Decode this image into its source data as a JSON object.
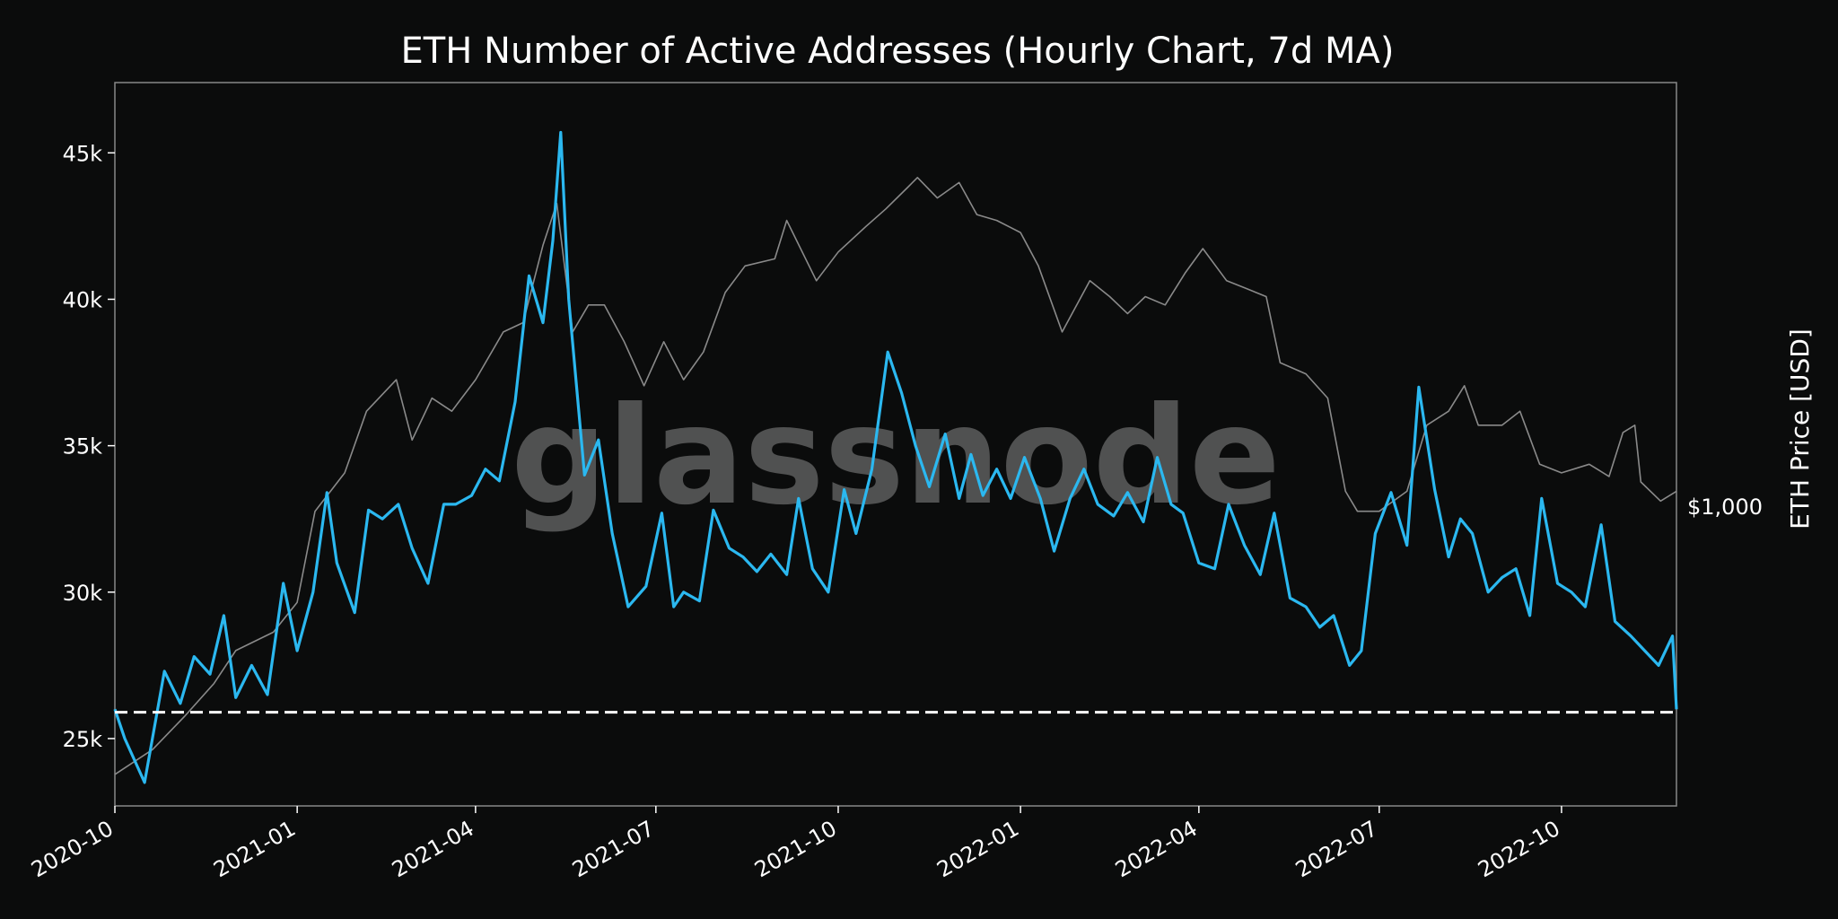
{
  "chart_data": {
    "type": "line",
    "title": "ETH Number of Active Addresses (Hourly Chart, 7d MA)",
    "watermark": "glassnode",
    "xlabel": "",
    "ylabel_right": "ETH Price [USD]",
    "right_tick_label": "$1,000",
    "x_ticks": [
      "2020-10",
      "2021-01",
      "2021-04",
      "2021-07",
      "2021-10",
      "2022-01",
      "2022-04",
      "2022-07",
      "2022-10"
    ],
    "y_ticks": [
      25000,
      30000,
      35000,
      40000,
      45000
    ],
    "y_tick_labels": [
      "25k",
      "30k",
      "35k",
      "40k",
      "45k"
    ],
    "ylim": [
      22700,
      47400
    ],
    "xlim": [
      "2020-10-01",
      "2022-11-28"
    ],
    "grid": false,
    "reference_line": {
      "value": 25900,
      "style": "dashed",
      "color": "#ffffff"
    },
    "colors": {
      "active_addresses": "#2bb8f0",
      "price": "#8a8a8a",
      "background": "#0b0c0c",
      "frame": "#888888"
    },
    "series": [
      {
        "key": "active_addresses",
        "axis": "left",
        "x": [
          "2020-10-01",
          "2020-10-06",
          "2020-10-16",
          "2020-10-26",
          "2020-11-03",
          "2020-11-10",
          "2020-11-18",
          "2020-11-25",
          "2020-12-01",
          "2020-12-09",
          "2020-12-17",
          "2020-12-25",
          "2021-01-01",
          "2021-01-09",
          "2021-01-16",
          "2021-01-21",
          "2021-01-30",
          "2021-02-06",
          "2021-02-13",
          "2021-02-21",
          "2021-02-28",
          "2021-03-08",
          "2021-03-16",
          "2021-03-22",
          "2021-03-30",
          "2021-04-06",
          "2021-04-13",
          "2021-04-21",
          "2021-04-28",
          "2021-05-05",
          "2021-05-10",
          "2021-05-14",
          "2021-05-18",
          "2021-05-26",
          "2021-06-02",
          "2021-06-09",
          "2021-06-17",
          "2021-06-26",
          "2021-07-04",
          "2021-07-10",
          "2021-07-15",
          "2021-07-23",
          "2021-07-30",
          "2021-08-07",
          "2021-08-14",
          "2021-08-21",
          "2021-08-28",
          "2021-09-05",
          "2021-09-11",
          "2021-09-18",
          "2021-09-26",
          "2021-10-04",
          "2021-10-10",
          "2021-10-18",
          "2021-10-26",
          "2021-11-02",
          "2021-11-09",
          "2021-11-16",
          "2021-11-24",
          "2021-12-01",
          "2021-12-07",
          "2021-12-13",
          "2021-12-20",
          "2021-12-27",
          "2022-01-03",
          "2022-01-11",
          "2022-01-18",
          "2022-01-26",
          "2022-02-02",
          "2022-02-09",
          "2022-02-17",
          "2022-02-24",
          "2022-03-04",
          "2022-03-11",
          "2022-03-18",
          "2022-03-24",
          "2022-04-01",
          "2022-04-09",
          "2022-04-16",
          "2022-04-24",
          "2022-05-02",
          "2022-05-09",
          "2022-05-17",
          "2022-05-25",
          "2022-06-01",
          "2022-06-08",
          "2022-06-16",
          "2022-06-22",
          "2022-06-29",
          "2022-07-07",
          "2022-07-15",
          "2022-07-21",
          "2022-07-29",
          "2022-08-05",
          "2022-08-11",
          "2022-08-17",
          "2022-08-25",
          "2022-09-01",
          "2022-09-08",
          "2022-09-15",
          "2022-09-21",
          "2022-09-29",
          "2022-10-06",
          "2022-10-13",
          "2022-10-21",
          "2022-10-28",
          "2022-11-05",
          "2022-11-12",
          "2022-11-19",
          "2022-11-26",
          "2022-11-28"
        ],
        "y": [
          26000,
          25000,
          23500,
          27300,
          26200,
          27800,
          27200,
          29200,
          26400,
          27500,
          26500,
          30300,
          28000,
          30000,
          33400,
          31000,
          29300,
          32800,
          32500,
          33000,
          31500,
          30300,
          33000,
          33000,
          33300,
          34200,
          33800,
          36500,
          40800,
          39200,
          42000,
          45700,
          40000,
          34000,
          35200,
          32000,
          29500,
          30200,
          32700,
          29500,
          30000,
          29700,
          32800,
          31500,
          31200,
          30700,
          31300,
          30600,
          33200,
          30800,
          30000,
          33500,
          32000,
          34200,
          38200,
          36800,
          35000,
          33600,
          35400,
          33200,
          34700,
          33300,
          34200,
          33200,
          34600,
          33200,
          31400,
          33200,
          34200,
          33000,
          32600,
          33400,
          32400,
          34600,
          33000,
          32700,
          31000,
          30800,
          33000,
          31600,
          30600,
          32700,
          29800,
          29500,
          28800,
          29200,
          27500,
          28000,
          32000,
          33400,
          31600,
          37000,
          33500,
          31200,
          32500,
          32000,
          30000,
          30500,
          30800,
          29200,
          33200,
          30300,
          30000,
          29500,
          32300,
          29000,
          28500,
          28000,
          27500,
          28500,
          26000
        ]
      },
      {
        "key": "price",
        "axis": "right",
        "x": [
          "2020-10-01",
          "2020-10-20",
          "2020-11-05",
          "2020-11-20",
          "2020-12-01",
          "2020-12-20",
          "2021-01-01",
          "2021-01-10",
          "2021-01-25",
          "2021-02-05",
          "2021-02-20",
          "2021-02-28",
          "2021-03-10",
          "2021-03-20",
          "2021-04-01",
          "2021-04-15",
          "2021-04-25",
          "2021-05-05",
          "2021-05-12",
          "2021-05-20",
          "2021-05-28",
          "2021-06-05",
          "2021-06-15",
          "2021-06-25",
          "2021-07-05",
          "2021-07-15",
          "2021-07-25",
          "2021-08-05",
          "2021-08-15",
          "2021-08-30",
          "2021-09-05",
          "2021-09-20",
          "2021-10-01",
          "2021-10-15",
          "2021-10-25",
          "2021-11-05",
          "2021-11-10",
          "2021-11-20",
          "2021-12-01",
          "2021-12-10",
          "2021-12-20",
          "2022-01-01",
          "2022-01-10",
          "2022-01-22",
          "2022-02-05",
          "2022-02-15",
          "2022-02-24",
          "2022-03-05",
          "2022-03-15",
          "2022-03-25",
          "2022-04-03",
          "2022-04-15",
          "2022-04-25",
          "2022-05-05",
          "2022-05-12",
          "2022-05-25",
          "2022-06-05",
          "2022-06-14",
          "2022-06-20",
          "2022-07-01",
          "2022-07-15",
          "2022-07-25",
          "2022-08-05",
          "2022-08-13",
          "2022-08-20",
          "2022-09-01",
          "2022-09-10",
          "2022-09-20",
          "2022-10-01",
          "2022-10-15",
          "2022-10-25",
          "2022-11-01",
          "2022-11-07",
          "2022-11-10",
          "2022-11-20",
          "2022-11-28"
        ],
        "y": [
          350,
          390,
          450,
          520,
          600,
          650,
          740,
          1100,
          1300,
          1700,
          1950,
          1500,
          1800,
          1700,
          1950,
          2400,
          2500,
          3500,
          4200,
          2400,
          2700,
          2700,
          2300,
          1900,
          2300,
          1950,
          2200,
          2850,
          3200,
          3300,
          3900,
          3000,
          3400,
          3800,
          4100,
          4500,
          4700,
          4300,
          4600,
          4000,
          3900,
          3700,
          3200,
          2400,
          3000,
          2800,
          2600,
          2800,
          2700,
          3100,
          3450,
          3000,
          2900,
          2800,
          2100,
          2000,
          1800,
          1200,
          1100,
          1100,
          1200,
          1600,
          1700,
          1900,
          1600,
          1600,
          1700,
          1350,
          1300,
          1350,
          1280,
          1550,
          1600,
          1250,
          1150,
          1200
        ]
      }
    ]
  }
}
